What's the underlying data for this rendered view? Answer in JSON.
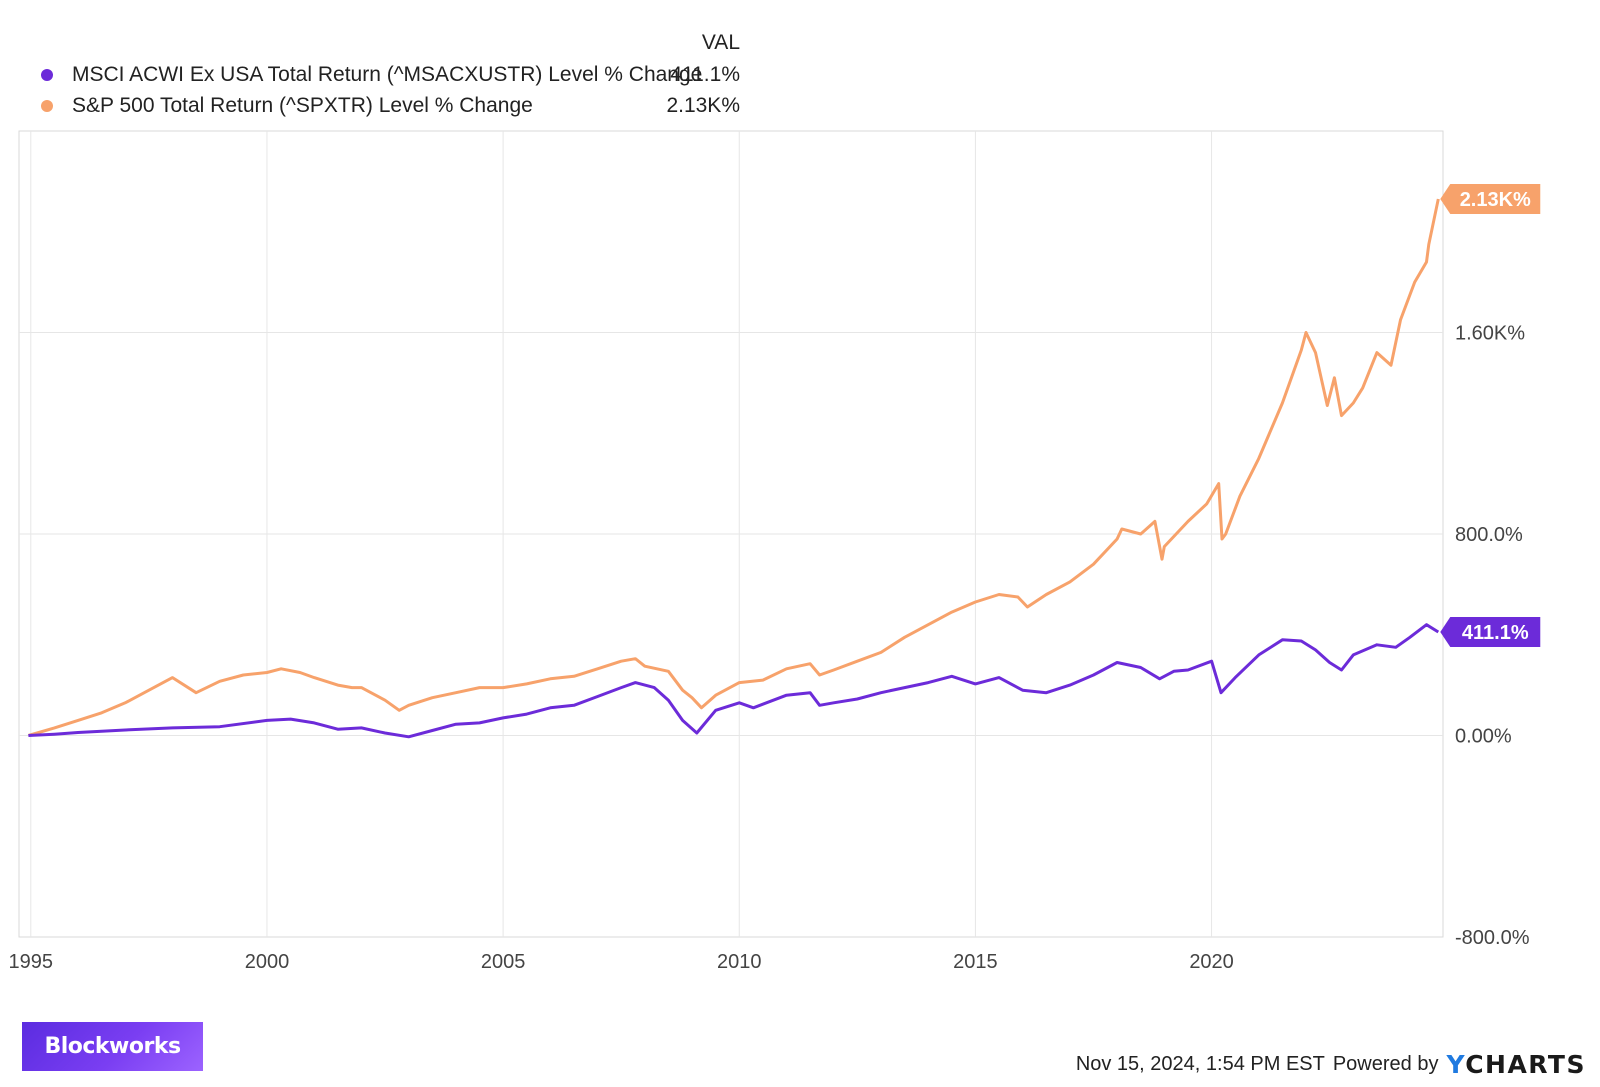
{
  "legend": {
    "header": "VAL",
    "items": [
      {
        "name": "MSCI ACWI Ex USA Total Return (^MSACXUSTR) Level % Change",
        "value": "411.1%",
        "color": "#6c2bd9"
      },
      {
        "name": "S&P 500 Total Return (^SPXTR) Level % Change",
        "value": "2.13K%",
        "color": "#f7a26b"
      }
    ]
  },
  "chart_data": {
    "type": "line",
    "x_ticks": [
      "1995",
      "2000",
      "2005",
      "2010",
      "2015",
      "2020"
    ],
    "y_ticks": [
      {
        "value": 1600,
        "label": "1.60K%"
      },
      {
        "value": 800,
        "label": "800.0%"
      },
      {
        "value": 0,
        "label": "0.00%"
      },
      {
        "value": -800,
        "label": "-800.0%"
      }
    ],
    "xlim": [
      1994.75,
      2024.9
    ],
    "ylim": [
      -800,
      2400
    ],
    "grid": true,
    "legend_position": "top-left",
    "series": [
      {
        "name": "S&P 500 Total Return (^SPXTR) Level % Change",
        "color": "#f7a26b",
        "end_label": "2.13K%",
        "points": [
          [
            1994.95,
            0
          ],
          [
            1995.5,
            30
          ],
          [
            1996.0,
            60
          ],
          [
            1996.5,
            90
          ],
          [
            1997.0,
            130
          ],
          [
            1997.5,
            180
          ],
          [
            1998.0,
            230
          ],
          [
            1998.5,
            170
          ],
          [
            1999.0,
            215
          ],
          [
            1999.5,
            240
          ],
          [
            2000.0,
            250
          ],
          [
            2000.3,
            265
          ],
          [
            2000.7,
            250
          ],
          [
            2001.0,
            230
          ],
          [
            2001.5,
            200
          ],
          [
            2001.8,
            190
          ],
          [
            2002.0,
            190
          ],
          [
            2002.5,
            140
          ],
          [
            2002.8,
            100
          ],
          [
            2003.0,
            120
          ],
          [
            2003.5,
            150
          ],
          [
            2004.0,
            170
          ],
          [
            2004.5,
            190
          ],
          [
            2005.0,
            190
          ],
          [
            2005.5,
            205
          ],
          [
            2006.0,
            225
          ],
          [
            2006.5,
            235
          ],
          [
            2007.0,
            265
          ],
          [
            2007.5,
            295
          ],
          [
            2007.8,
            305
          ],
          [
            2008.0,
            275
          ],
          [
            2008.5,
            255
          ],
          [
            2008.8,
            180
          ],
          [
            2009.0,
            150
          ],
          [
            2009.2,
            110
          ],
          [
            2009.5,
            160
          ],
          [
            2010.0,
            210
          ],
          [
            2010.5,
            220
          ],
          [
            2011.0,
            265
          ],
          [
            2011.5,
            285
          ],
          [
            2011.7,
            240
          ],
          [
            2012.0,
            260
          ],
          [
            2012.5,
            295
          ],
          [
            2013.0,
            330
          ],
          [
            2013.5,
            390
          ],
          [
            2014.0,
            440
          ],
          [
            2014.5,
            490
          ],
          [
            2015.0,
            530
          ],
          [
            2015.5,
            560
          ],
          [
            2015.9,
            550
          ],
          [
            2016.1,
            510
          ],
          [
            2016.5,
            560
          ],
          [
            2017.0,
            610
          ],
          [
            2017.5,
            680
          ],
          [
            2018.0,
            780
          ],
          [
            2018.1,
            820
          ],
          [
            2018.5,
            800
          ],
          [
            2018.8,
            850
          ],
          [
            2018.95,
            700
          ],
          [
            2019.0,
            750
          ],
          [
            2019.5,
            850
          ],
          [
            2019.9,
            920
          ],
          [
            2020.15,
            1000
          ],
          [
            2020.22,
            780
          ],
          [
            2020.3,
            800
          ],
          [
            2020.6,
            950
          ],
          [
            2021.0,
            1100
          ],
          [
            2021.5,
            1320
          ],
          [
            2021.9,
            1530
          ],
          [
            2022.0,
            1600
          ],
          [
            2022.2,
            1520
          ],
          [
            2022.45,
            1310
          ],
          [
            2022.6,
            1420
          ],
          [
            2022.75,
            1270
          ],
          [
            2023.0,
            1320
          ],
          [
            2023.2,
            1380
          ],
          [
            2023.5,
            1520
          ],
          [
            2023.8,
            1470
          ],
          [
            2024.0,
            1650
          ],
          [
            2024.3,
            1800
          ],
          [
            2024.55,
            1880
          ],
          [
            2024.6,
            1950
          ],
          [
            2024.8,
            2130
          ]
        ]
      },
      {
        "name": "MSCI ACWI Ex USA Total Return (^MSACXUSTR) Level % Change",
        "color": "#6c2bd9",
        "end_label": "411.1%",
        "points": [
          [
            1994.95,
            0
          ],
          [
            1995.5,
            5
          ],
          [
            1996.0,
            12
          ],
          [
            1997.0,
            22
          ],
          [
            1998.0,
            30
          ],
          [
            1999.0,
            35
          ],
          [
            2000.0,
            60
          ],
          [
            2000.5,
            65
          ],
          [
            2001.0,
            50
          ],
          [
            2001.5,
            25
          ],
          [
            2002.0,
            30
          ],
          [
            2002.5,
            10
          ],
          [
            2003.0,
            -5
          ],
          [
            2003.5,
            20
          ],
          [
            2004.0,
            45
          ],
          [
            2004.5,
            50
          ],
          [
            2005.0,
            70
          ],
          [
            2005.5,
            85
          ],
          [
            2006.0,
            110
          ],
          [
            2006.5,
            120
          ],
          [
            2007.0,
            155
          ],
          [
            2007.5,
            190
          ],
          [
            2007.8,
            210
          ],
          [
            2008.2,
            190
          ],
          [
            2008.5,
            140
          ],
          [
            2008.8,
            60
          ],
          [
            2009.1,
            10
          ],
          [
            2009.5,
            100
          ],
          [
            2010.0,
            130
          ],
          [
            2010.3,
            110
          ],
          [
            2011.0,
            160
          ],
          [
            2011.5,
            170
          ],
          [
            2011.7,
            120
          ],
          [
            2012.0,
            130
          ],
          [
            2012.5,
            145
          ],
          [
            2013.0,
            170
          ],
          [
            2013.5,
            190
          ],
          [
            2014.0,
            210
          ],
          [
            2014.5,
            235
          ],
          [
            2015.0,
            205
          ],
          [
            2015.5,
            230
          ],
          [
            2016.0,
            180
          ],
          [
            2016.5,
            170
          ],
          [
            2017.0,
            200
          ],
          [
            2017.5,
            240
          ],
          [
            2018.0,
            290
          ],
          [
            2018.5,
            270
          ],
          [
            2018.9,
            225
          ],
          [
            2019.2,
            255
          ],
          [
            2019.5,
            260
          ],
          [
            2020.0,
            295
          ],
          [
            2020.2,
            170
          ],
          [
            2020.5,
            230
          ],
          [
            2021.0,
            320
          ],
          [
            2021.5,
            380
          ],
          [
            2021.9,
            375
          ],
          [
            2022.2,
            340
          ],
          [
            2022.5,
            290
          ],
          [
            2022.75,
            260
          ],
          [
            2023.0,
            320
          ],
          [
            2023.5,
            360
          ],
          [
            2023.9,
            350
          ],
          [
            2024.2,
            390
          ],
          [
            2024.55,
            440
          ],
          [
            2024.8,
            411
          ]
        ]
      }
    ]
  },
  "watermark": {
    "brand": "Blockworks"
  },
  "footer": {
    "timestamp": "Nov 15, 2024, 1:54 PM EST",
    "powered_by": "Powered by",
    "logo": "YCHARTS"
  }
}
